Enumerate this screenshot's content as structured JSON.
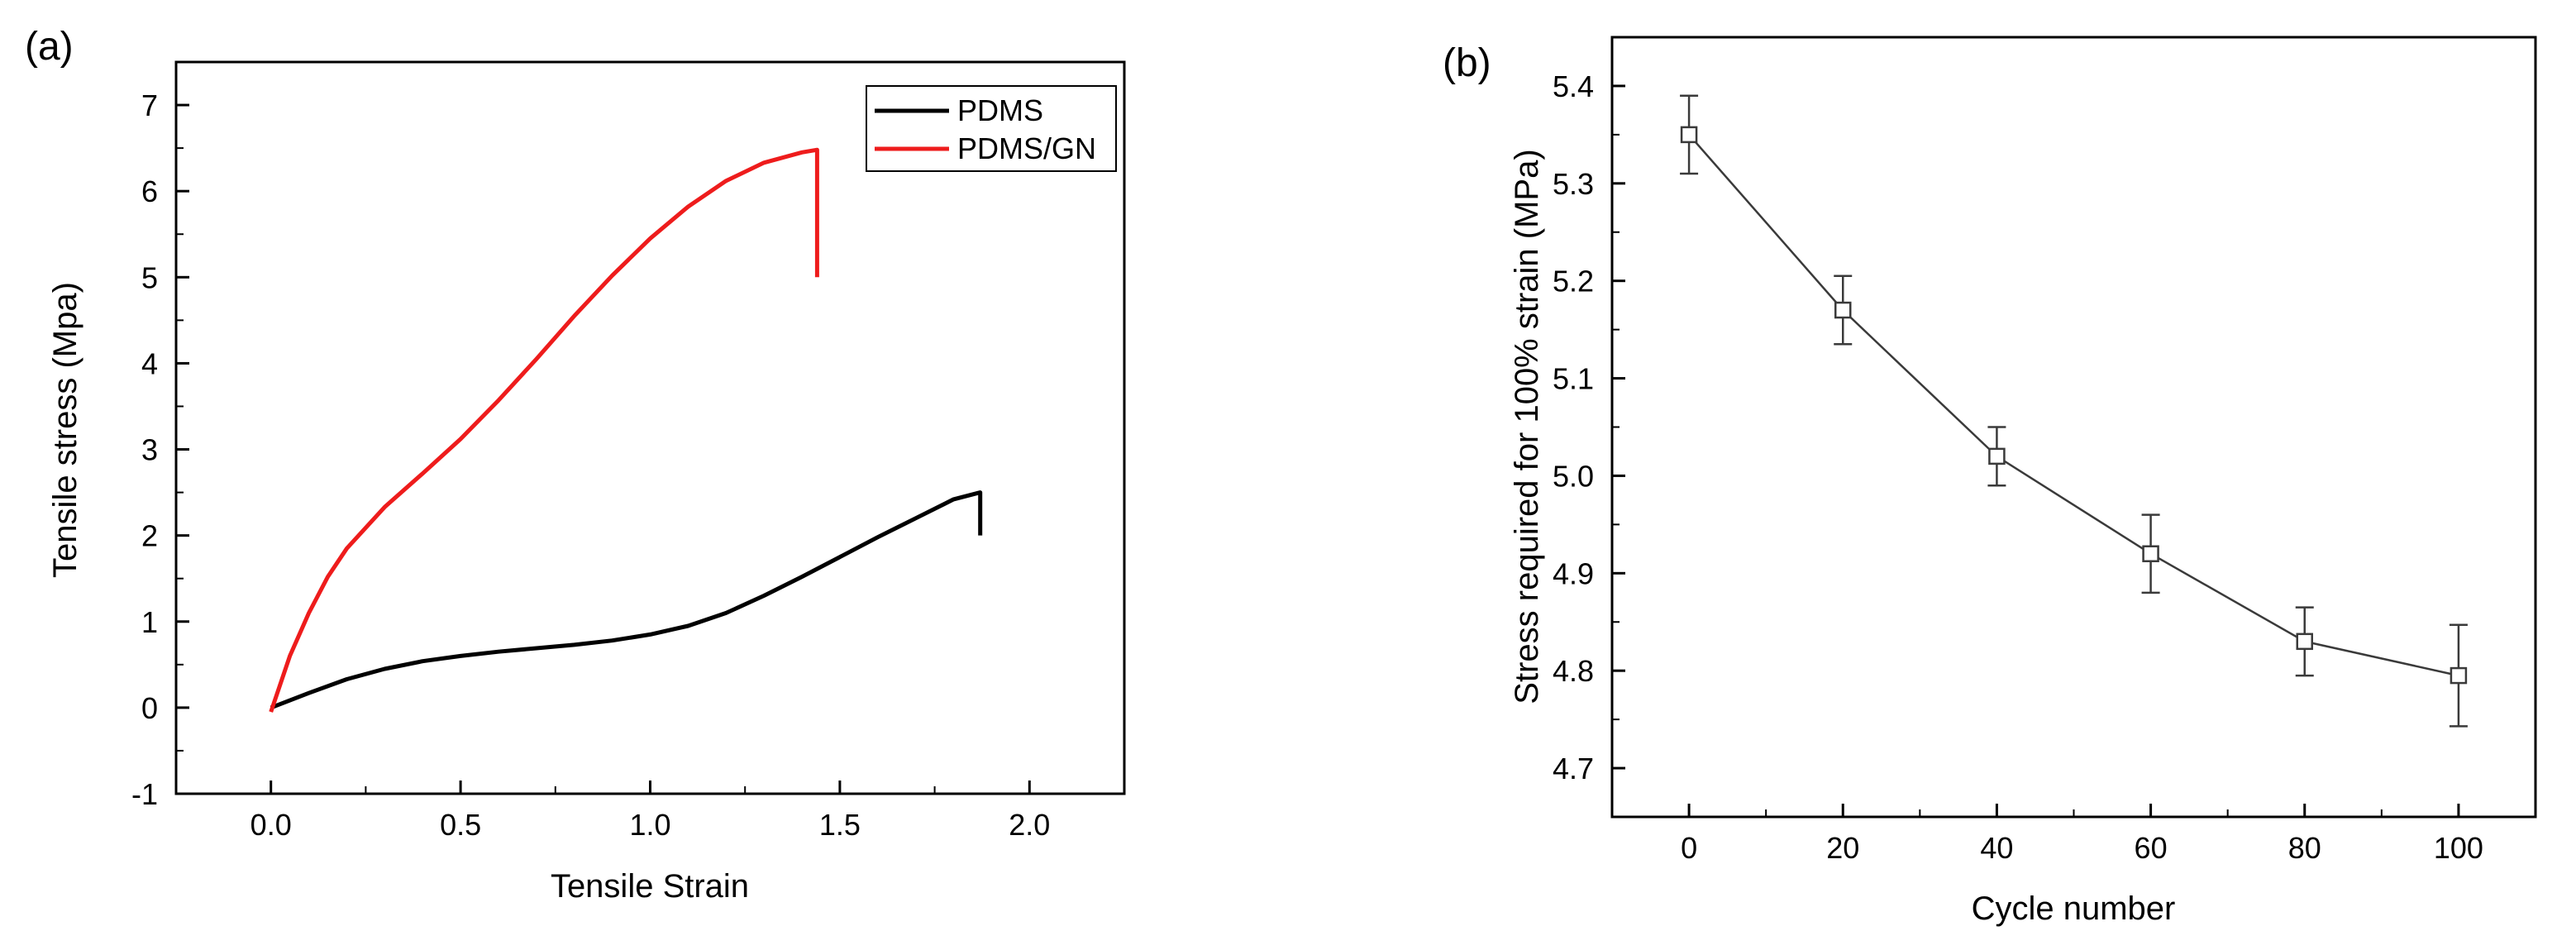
{
  "panels": {
    "a": {
      "label": "(a)"
    },
    "b": {
      "label": "(b)"
    }
  },
  "colors": {
    "pdms": "#000000",
    "pdms_gn": "#ee1c1c",
    "axis": "#000000",
    "series_b": "#3a3a3a"
  },
  "chart_data": [
    {
      "type": "line",
      "panel": "(a)",
      "title": "",
      "xlabel": "Tensile Strain",
      "ylabel": "Tensile stress (Mpa)",
      "xlim": [
        -0.25,
        2.25
      ],
      "ylim": [
        -1,
        7.5
      ],
      "xticks": [
        0.0,
        0.5,
        1.0,
        1.5,
        2.0
      ],
      "xtick_labels": [
        "0.0",
        "0.5",
        "1.0",
        "1.5",
        "2.0"
      ],
      "yticks": [
        -1,
        0,
        1,
        2,
        3,
        4,
        5,
        6,
        7
      ],
      "ytick_labels": [
        "-1",
        "0",
        "1",
        "2",
        "3",
        "4",
        "5",
        "6",
        "7"
      ],
      "legend_position": "top-right",
      "series": [
        {
          "name": "PDMS",
          "color": "#000000",
          "x": [
            0,
            0.1,
            0.2,
            0.3,
            0.4,
            0.5,
            0.6,
            0.7,
            0.8,
            0.9,
            1.0,
            1.1,
            1.2,
            1.3,
            1.4,
            1.5,
            1.6,
            1.7,
            1.8,
            1.87,
            1.87
          ],
          "y": [
            0,
            0.17,
            0.33,
            0.45,
            0.54,
            0.6,
            0.65,
            0.69,
            0.73,
            0.78,
            0.85,
            0.95,
            1.1,
            1.3,
            1.52,
            1.75,
            1.98,
            2.2,
            2.42,
            2.5,
            2.0
          ]
        },
        {
          "name": "PDMS/GN",
          "color": "#ee1c1c",
          "x": [
            0,
            0.05,
            0.1,
            0.15,
            0.2,
            0.3,
            0.4,
            0.5,
            0.6,
            0.7,
            0.8,
            0.9,
            1.0,
            1.1,
            1.2,
            1.3,
            1.4,
            1.44,
            1.44
          ],
          "y": [
            -0.05,
            0.6,
            1.1,
            1.52,
            1.85,
            2.33,
            2.72,
            3.12,
            3.57,
            4.05,
            4.55,
            5.02,
            5.45,
            5.82,
            6.12,
            6.33,
            6.45,
            6.48,
            5.0
          ]
        }
      ]
    },
    {
      "type": "line",
      "panel": "(b)",
      "title": "",
      "xlabel": "Cycle number",
      "ylabel": "Stress required for 100% strain (MPa)",
      "xlim": [
        -10,
        110
      ],
      "ylim": [
        4.65,
        5.45
      ],
      "xticks": [
        0,
        20,
        40,
        60,
        80,
        100
      ],
      "xtick_labels": [
        "0",
        "20",
        "40",
        "60",
        "80",
        "100"
      ],
      "yticks": [
        4.7,
        4.8,
        4.9,
        5.0,
        5.1,
        5.2,
        5.3,
        5.4
      ],
      "ytick_labels": [
        "4.7",
        "4.8",
        "4.9",
        "5.0",
        "5.1",
        "5.2",
        "5.3",
        "5.4"
      ],
      "marker": "open-square",
      "series": [
        {
          "name": "Stress",
          "x": [
            0,
            20,
            40,
            60,
            80,
            100
          ],
          "y": [
            5.35,
            5.17,
            5.02,
            4.92,
            4.83,
            4.795
          ],
          "error": [
            0.04,
            0.035,
            0.03,
            0.04,
            0.035,
            0.052
          ]
        }
      ]
    }
  ]
}
